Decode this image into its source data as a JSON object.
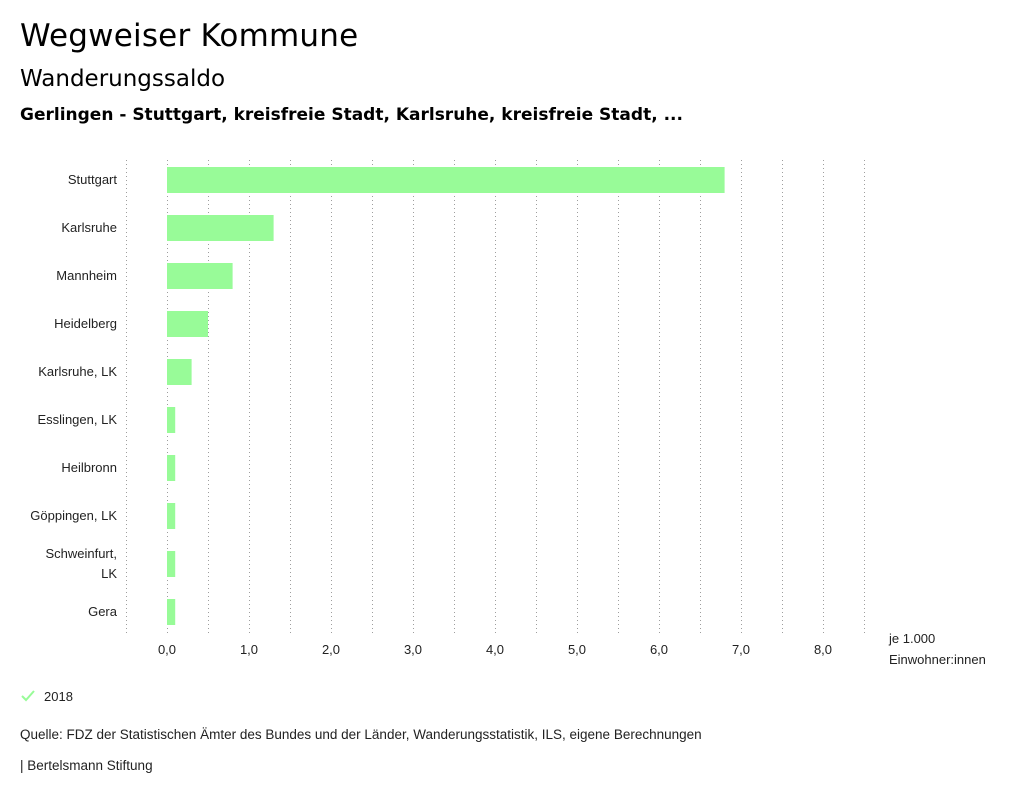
{
  "header": {
    "title": "Wegweiser Kommune",
    "subtitle": "Wanderungssaldo",
    "selection": "Gerlingen - Stuttgart, kreisfreie Stadt, Karlsruhe, kreisfreie Stadt, ..."
  },
  "colors": {
    "bar": "#98fb98",
    "grid": "#9e9e9e",
    "check": "#98fb98"
  },
  "chart_data": {
    "type": "bar",
    "orientation": "horizontal",
    "categories": [
      "Stuttgart",
      "Karlsruhe",
      "Mannheim",
      "Heidelberg",
      "Karlsruhe, LK",
      "Esslingen, LK",
      "Heilbronn",
      "Göppingen, LK",
      "Schweinfurt, LK",
      "Gera"
    ],
    "category_lines": [
      [
        "Stuttgart"
      ],
      [
        "Karlsruhe"
      ],
      [
        "Mannheim"
      ],
      [
        "Heidelberg"
      ],
      [
        "Karlsruhe, LK"
      ],
      [
        "Esslingen, LK"
      ],
      [
        "Heilbronn"
      ],
      [
        "Göppingen, LK"
      ],
      [
        "Schweinfurt,",
        "LK"
      ],
      [
        "Gera"
      ]
    ],
    "series": [
      {
        "name": "2018",
        "values": [
          6.8,
          1.3,
          0.8,
          0.5,
          0.3,
          0.1,
          0.1,
          0.1,
          0.1,
          0.1
        ]
      }
    ],
    "xlim": [
      -0.5,
      8.5
    ],
    "ticks": [
      0,
      1,
      2,
      3,
      4,
      5,
      6,
      7,
      8
    ],
    "tick_labels": [
      "0,0",
      "1,0",
      "2,0",
      "3,0",
      "4,0",
      "5,0",
      "6,0",
      "7,0",
      "8,0"
    ],
    "unit_lines": [
      "je 1.000",
      "Einwohner:innen"
    ],
    "grid": true,
    "title": "Wanderungssaldo",
    "xlabel": "je 1.000 Einwohner:innen",
    "ylabel": ""
  },
  "legend": {
    "label": "2018"
  },
  "footer": {
    "source": "Quelle: FDZ der Statistischen Ämter des Bundes und der Länder, Wanderungsstatistik, ILS, eigene Berechnungen",
    "publisher": "| Bertelsmann Stiftung"
  }
}
